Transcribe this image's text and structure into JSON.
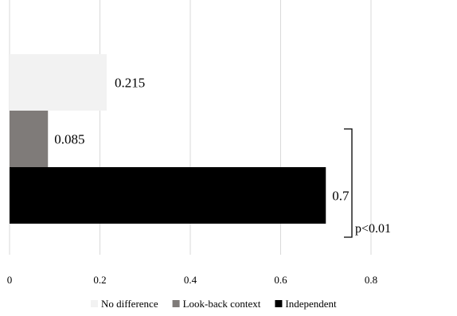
{
  "chart_data": {
    "type": "bar",
    "orientation": "horizontal",
    "xlim": [
      0,
      0.8
    ],
    "x_ticks": [
      "0",
      "0.2",
      "0.4",
      "0.6",
      "0.8"
    ],
    "grid": true,
    "legend_position": "bottom",
    "series": [
      {
        "name": "No difference",
        "value": 0.215,
        "label": "0.215",
        "color": "#f2f2f2"
      },
      {
        "name": "Look-back context",
        "value": 0.085,
        "label": "0.085",
        "color": "#7f7b79"
      },
      {
        "name": "Independent",
        "value": 0.7,
        "label": "0.7",
        "color": "#000000"
      }
    ],
    "annotation": {
      "text": "p<0.01"
    }
  }
}
